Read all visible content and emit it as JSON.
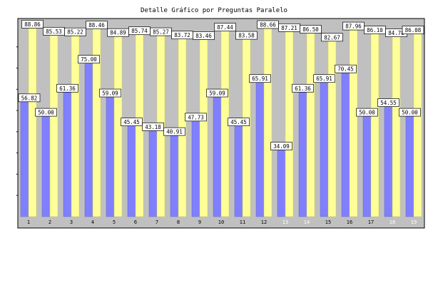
{
  "chart_data": {
    "type": "bar",
    "title": "Detalle Gráfico por Preguntas Paralelo",
    "categories": [
      "1",
      "2",
      "3",
      "4",
      "5",
      "6",
      "7",
      "8",
      "9",
      "10",
      "11",
      "12",
      "13",
      "14",
      "15",
      "16",
      "17",
      "18",
      "19"
    ],
    "series": [
      {
        "color": "#8080ff",
        "values": [
          56.82,
          50.0,
          61.36,
          75.0,
          59.09,
          45.45,
          43.18,
          40.91,
          47.73,
          59.09,
          45.45,
          65.91,
          34.09,
          61.36,
          65.91,
          70.45,
          50.0,
          54.55,
          50.0
        ]
      },
      {
        "color": "#ffff99",
        "values": [
          88.86,
          85.53,
          85.22,
          88.46,
          84.89,
          85.74,
          85.27,
          83.72,
          83.46,
          87.44,
          83.58,
          88.66,
          87.21,
          86.5,
          82.67,
          87.96,
          86.1,
          84.78,
          86.08
        ]
      }
    ],
    "yticks": [
      "10",
      "20",
      "30",
      "40",
      "50",
      "60",
      "70",
      "80"
    ],
    "ylim": [
      0,
      90
    ],
    "grid": false,
    "plot_background": "#c0c0c0",
    "tick_label_color_dark": "#000000",
    "tick_label_color_light": "#ffffff",
    "light_tick_label_categories": [
      "13",
      "14",
      "18",
      "19"
    ]
  }
}
